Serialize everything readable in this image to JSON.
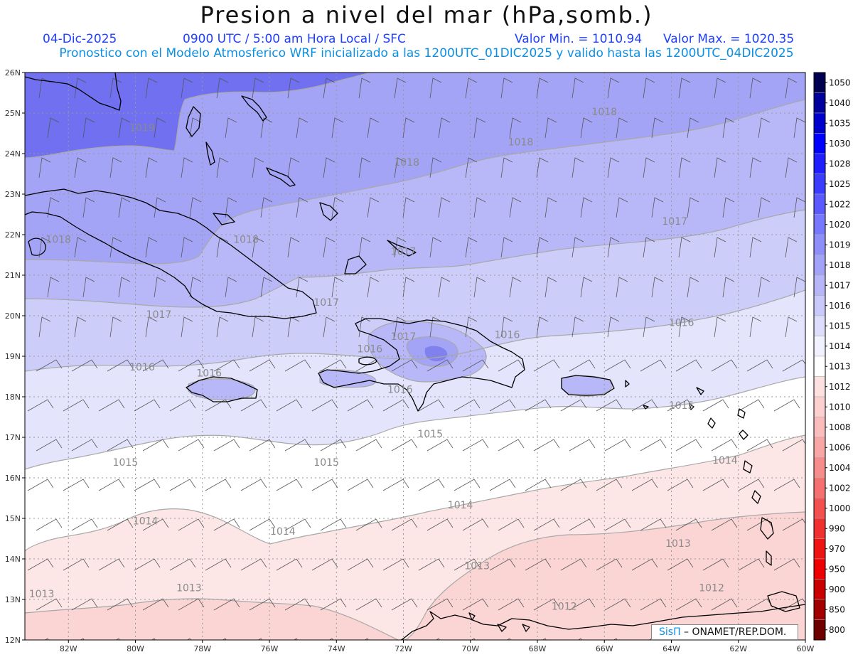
{
  "header": {
    "title": "Presion a nivel del mar (hPa,somb.)",
    "date": "04-Dic-2025",
    "time": "0900 UTC / 5:00 am Hora Local / SFC",
    "min_label": "Valor Min. = 1010.94",
    "max_label": "Valor Max. = 1020.35",
    "model_line": "Pronostico con el Modelo Atmosferico WRF inicializado a las 1200UTC_01DIC2025 y valido hasta las  1200UTC_04DIC2025"
  },
  "axes": {
    "lat_labels": [
      "26N",
      "25N",
      "24N",
      "23N",
      "22N",
      "21N",
      "20N",
      "19N",
      "18N",
      "17N",
      "16N",
      "15N",
      "14N",
      "13N",
      "12N"
    ],
    "lon_labels": [
      "82W",
      "80W",
      "78W",
      "76W",
      "74W",
      "72W",
      "70W",
      "68W",
      "66W",
      "64W",
      "62W",
      "60W"
    ]
  },
  "colors": {
    "land_outline": "#000000",
    "contour_line": "#a8a8a8",
    "bands": {
      "1019": "#7070f0",
      "1018": "#a4a4f6",
      "1017": "#b8b8f8",
      "1016": "#cdcdfa",
      "1015": "#e4e4fc",
      "1014": "#ffffff",
      "1013": "#fde6e6",
      "1012": "#fbd4d4"
    }
  },
  "contour_labels": [
    {
      "text": "1019",
      "lon": -79.8,
      "lat": 24.55
    },
    {
      "text": "1018",
      "lon": -66.0,
      "lat": 24.95
    },
    {
      "text": "1018",
      "lon": -68.5,
      "lat": 24.2
    },
    {
      "text": "1018",
      "lon": -71.9,
      "lat": 23.7
    },
    {
      "text": "1018",
      "lon": -82.3,
      "lat": 21.8
    },
    {
      "text": "1018",
      "lon": -76.7,
      "lat": 21.8
    },
    {
      "text": "1017",
      "lon": -63.9,
      "lat": 22.25
    },
    {
      "text": "1017",
      "lon": -72.0,
      "lat": 21.5
    },
    {
      "text": "1017",
      "lon": -74.3,
      "lat": 20.25
    },
    {
      "text": "1017",
      "lon": -79.3,
      "lat": 19.95
    },
    {
      "text": "1017",
      "lon": -72.0,
      "lat": 19.4
    },
    {
      "text": "1016",
      "lon": -73.0,
      "lat": 19.1
    },
    {
      "text": "1016",
      "lon": -68.9,
      "lat": 19.45
    },
    {
      "text": "1016",
      "lon": -63.7,
      "lat": 19.75
    },
    {
      "text": "1016",
      "lon": -79.8,
      "lat": 18.65
    },
    {
      "text": "1016",
      "lon": -77.8,
      "lat": 18.5
    },
    {
      "text": "1016",
      "lon": -72.1,
      "lat": 18.1
    },
    {
      "text": "1015",
      "lon": -63.7,
      "lat": 17.7
    },
    {
      "text": "1015",
      "lon": -71.2,
      "lat": 17.0
    },
    {
      "text": "1015",
      "lon": -80.3,
      "lat": 16.3
    },
    {
      "text": "1015",
      "lon": -74.3,
      "lat": 16.3
    },
    {
      "text": "1014",
      "lon": -62.4,
      "lat": 16.35
    },
    {
      "text": "1014",
      "lon": -70.3,
      "lat": 15.25
    },
    {
      "text": "1014",
      "lon": -79.7,
      "lat": 14.85
    },
    {
      "text": "1014",
      "lon": -75.6,
      "lat": 14.6
    },
    {
      "text": "1013",
      "lon": -63.8,
      "lat": 14.3
    },
    {
      "text": "1013",
      "lon": -69.8,
      "lat": 13.75
    },
    {
      "text": "1013",
      "lon": -78.4,
      "lat": 13.2
    },
    {
      "text": "1013",
      "lon": -82.8,
      "lat": 13.05
    },
    {
      "text": "1012",
      "lon": -62.8,
      "lat": 13.2
    },
    {
      "text": "1012",
      "lon": -67.2,
      "lat": 12.75
    }
  ],
  "legend": {
    "labels": [
      "1050",
      "1040",
      "1035",
      "1030",
      "1028",
      "1025",
      "1022",
      "1020",
      "1019",
      "1018",
      "1017",
      "1016",
      "1015",
      "1014",
      "1013",
      "1012",
      "1010",
      "1008",
      "1006",
      "1004",
      "1002",
      "1000",
      "990",
      "970",
      "950",
      "900",
      "850",
      "800"
    ],
    "colors": [
      "#000050",
      "#00009a",
      "#0000cd",
      "#0000ff",
      "#1e1eff",
      "#3c3cff",
      "#5a5aff",
      "#7878ff",
      "#8e8ef8",
      "#a2a2f8",
      "#b6b6f9",
      "#cacafa",
      "#dedefc",
      "#f2f2fe",
      "#ffffff",
      "#fde0e0",
      "#fdd0d0",
      "#fbbcbc",
      "#f9a6a6",
      "#f78c8c",
      "#f57070",
      "#f35050",
      "#f13030",
      "#ef1414",
      "#ee0000",
      "#c80000",
      "#a00000",
      "#6e0000"
    ]
  },
  "credit": {
    "brand": "SisΠ",
    "text": " – ONAMET/REP.DOM."
  }
}
